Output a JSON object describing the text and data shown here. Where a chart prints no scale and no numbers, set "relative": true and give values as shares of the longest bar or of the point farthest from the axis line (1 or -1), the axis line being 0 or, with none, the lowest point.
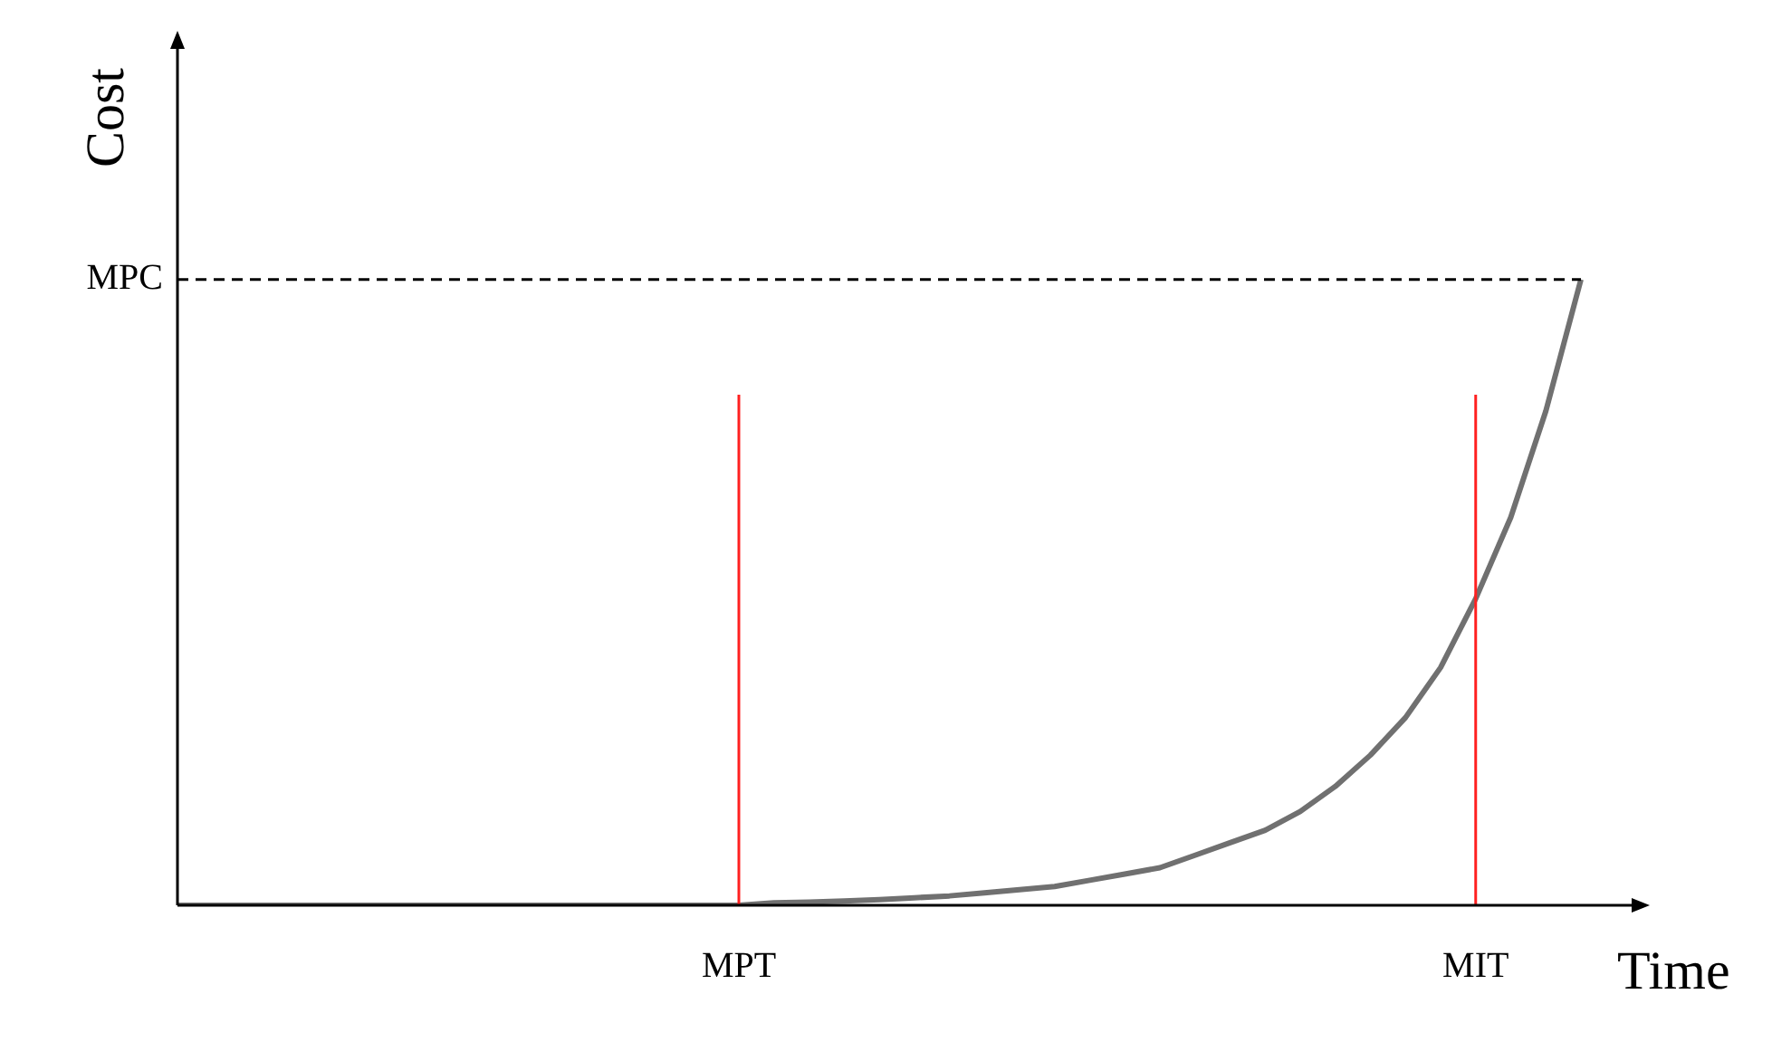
{
  "chart_data": {
    "type": "line",
    "relative": true,
    "xlabel": "Time",
    "ylabel": "Cost",
    "categories": [
      null,
      null,
      null,
      null,
      null,
      null,
      null,
      null,
      null,
      null,
      null,
      null,
      null,
      null,
      null,
      null,
      "MPT",
      null,
      null,
      null,
      null,
      null,
      null,
      null,
      null,
      null,
      null,
      null,
      null,
      null,
      null,
      null,
      null,
      null,
      null,
      null,
      null,
      "MIT",
      null,
      null,
      null
    ],
    "series": [
      {
        "color": "#707070",
        "values": [
          0,
          0,
          0,
          0,
          0,
          0,
          0,
          0,
          0,
          0,
          0,
          0,
          0,
          0,
          0,
          0,
          0,
          0.004,
          0.005,
          0.007,
          0.009,
          0.012,
          0.015,
          0.02,
          0.025,
          0.03,
          0.04,
          0.05,
          0.06,
          0.08,
          0.1,
          0.12,
          0.15,
          0.19,
          0.24,
          0.3,
          0.38,
          0.49,
          0.62,
          0.79,
          1
        ]
      }
    ],
    "ref_lines": [
      {
        "axis": "y",
        "value": 1,
        "label": "MPC",
        "color": "#000000",
        "line_style": "dashed"
      },
      {
        "axis": "x",
        "value": "MPT",
        "color": "#ff2020",
        "line_style": "solid"
      },
      {
        "axis": "x",
        "value": "MIT",
        "color": "#ff2020",
        "line_style": "solid"
      }
    ],
    "grid": false,
    "legend": false,
    "marker": "none",
    "line_style": "solid"
  }
}
